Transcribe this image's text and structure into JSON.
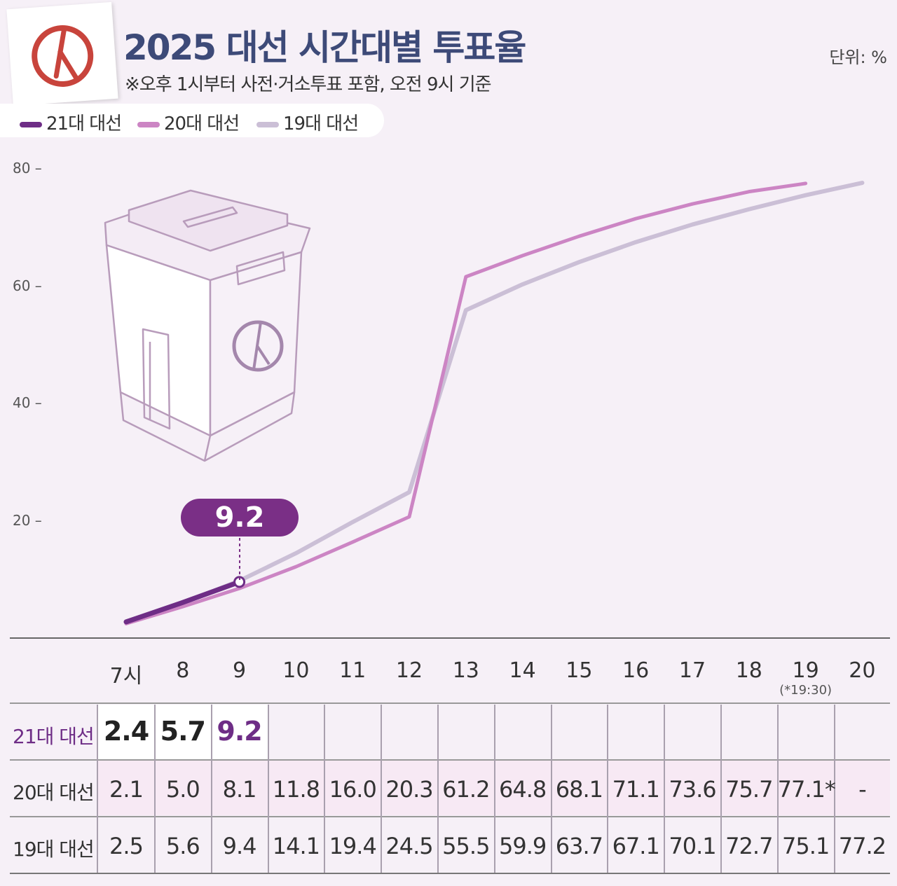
{
  "header": {
    "title": "2025 대선 시간대별 투표율",
    "subtitle": "※오후 1시부터 사전·거소투표 포함, 오전 9시 기준",
    "unit": "단위: %"
  },
  "legend": [
    {
      "label": "21대 대선",
      "color": "#6e2d86"
    },
    {
      "label": "20대 대선",
      "color": "#cc85c4"
    },
    {
      "label": "19대 대선",
      "color": "#cbbfd6"
    }
  ],
  "callout": {
    "value": "9.2"
  },
  "chart_data": {
    "type": "line",
    "title": "2025 대선 시간대별 투표율",
    "x": [
      "7시",
      "8",
      "9",
      "10",
      "11",
      "12",
      "13",
      "14",
      "15",
      "16",
      "17",
      "18",
      "19",
      "20"
    ],
    "x_note": {
      "index": 12,
      "text": "(*19:30)"
    },
    "yticks": [
      "80",
      "60",
      "40",
      "20"
    ],
    "ylim": [
      0,
      80
    ],
    "grid": false,
    "legend_position": "top-left",
    "series": [
      {
        "name": "21대 대선",
        "color": "#6e2d86",
        "values": [
          2.4,
          5.7,
          9.2,
          null,
          null,
          null,
          null,
          null,
          null,
          null,
          null,
          null,
          null,
          null
        ]
      },
      {
        "name": "20대 대선",
        "color": "#cc85c4",
        "values": [
          2.1,
          5.0,
          8.1,
          11.8,
          16.0,
          20.3,
          61.2,
          64.8,
          68.1,
          71.1,
          73.6,
          75.7,
          77.1,
          null
        ]
      },
      {
        "name": "19대 대선",
        "color": "#cbbfd6",
        "values": [
          2.5,
          5.6,
          9.4,
          14.1,
          19.4,
          24.5,
          55.5,
          59.9,
          63.7,
          67.1,
          70.1,
          72.7,
          75.1,
          77.2
        ]
      }
    ]
  },
  "table": {
    "rows": [
      {
        "label": "21대 대선",
        "cells": [
          "2.4",
          "5.7",
          "9.2",
          "",
          "",
          "",
          "",
          "",
          "",
          "",
          "",
          "",
          "",
          ""
        ]
      },
      {
        "label": "20대 대선",
        "cells": [
          "2.1",
          "5.0",
          "8.1",
          "11.8",
          "16.0",
          "20.3",
          "61.2",
          "64.8",
          "68.1",
          "71.1",
          "73.6",
          "75.7",
          "77.1*",
          "-"
        ]
      },
      {
        "label": "19대 대선",
        "cells": [
          "2.5",
          "5.6",
          "9.4",
          "14.1",
          "19.4",
          "24.5",
          "55.5",
          "59.9",
          "63.7",
          "67.1",
          "70.1",
          "72.7",
          "75.1",
          "77.2"
        ]
      }
    ]
  }
}
